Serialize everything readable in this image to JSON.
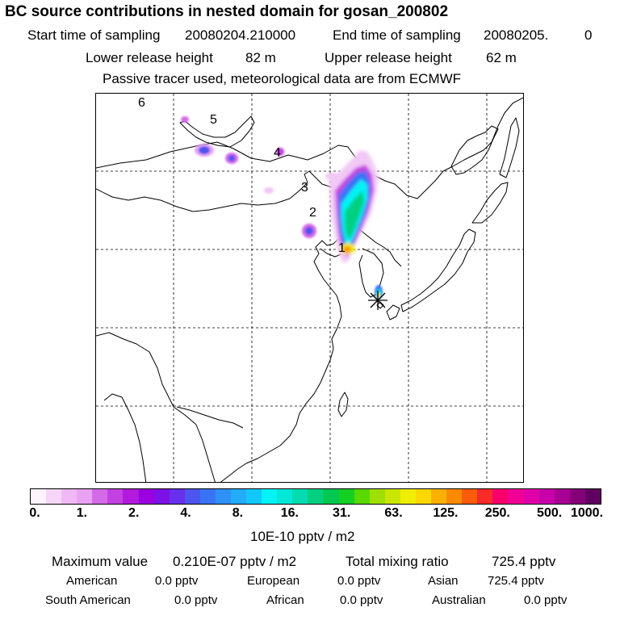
{
  "header": {
    "title": "BC  source contributions in nested domain for gosan_200802",
    "start_label": "Start time of sampling",
    "start_value": "20080204.210000",
    "end_label": "End time of sampling",
    "end_value": "20080205.",
    "end_suffix": "0",
    "lower_label": "Lower release height",
    "lower_value": "82 m",
    "upper_label": "Upper release height",
    "upper_value": "62 m",
    "tracer_note": "Passive tracer used, meteorological data are from ECMWF"
  },
  "map": {
    "markers": [
      "6",
      "5",
      "4",
      "3",
      "2",
      "1"
    ],
    "receptor_symbol": "✳"
  },
  "colorbar": {
    "ticks": [
      "0.",
      "1.",
      "2.",
      "4.",
      "8.",
      "16.",
      "31.",
      "63.",
      "125.",
      "250.",
      "500.",
      "1000."
    ],
    "unit": "10E-10 pptv / m2",
    "colors": [
      "#fdf3fd",
      "#f6d6f8",
      "#f0b8f5",
      "#e9a2f2",
      "#d46ae8",
      "#c341e2",
      "#b21add",
      "#9a00e0",
      "#7d10e6",
      "#6630ec",
      "#4d55ef",
      "#3973f5",
      "#2f91f8",
      "#22acfa",
      "#12c8fb",
      "#00f4f6",
      "#00e8d8",
      "#00dcb0",
      "#00d080",
      "#00c850",
      "#14d025",
      "#5ad900",
      "#9fe000",
      "#c9e600",
      "#f0ee00",
      "#fbd800",
      "#fbb000",
      "#fb8a00",
      "#fb5c0c",
      "#f92a2a",
      "#f9006c",
      "#f10096",
      "#e000aa",
      "#c700aa",
      "#a80095",
      "#86007a",
      "#600060"
    ]
  },
  "summary": {
    "max_label": "Maximum value",
    "max_value": "0.210E-07 pptv / m2",
    "total_label": "Total mixing ratio",
    "total_value": "725.4 pptv",
    "american_label": "American",
    "american_value": "0.0 pptv",
    "european_label": "European",
    "european_value": "0.0 pptv",
    "asian_label": "Asian",
    "asian_value": "725.4 pptv",
    "south_american_label": "South American",
    "south_american_value": "0.0 pptv",
    "african_label": "African",
    "african_value": "0.0 pptv",
    "australian_label": "Australian",
    "australian_value": "0.0 pptv"
  }
}
